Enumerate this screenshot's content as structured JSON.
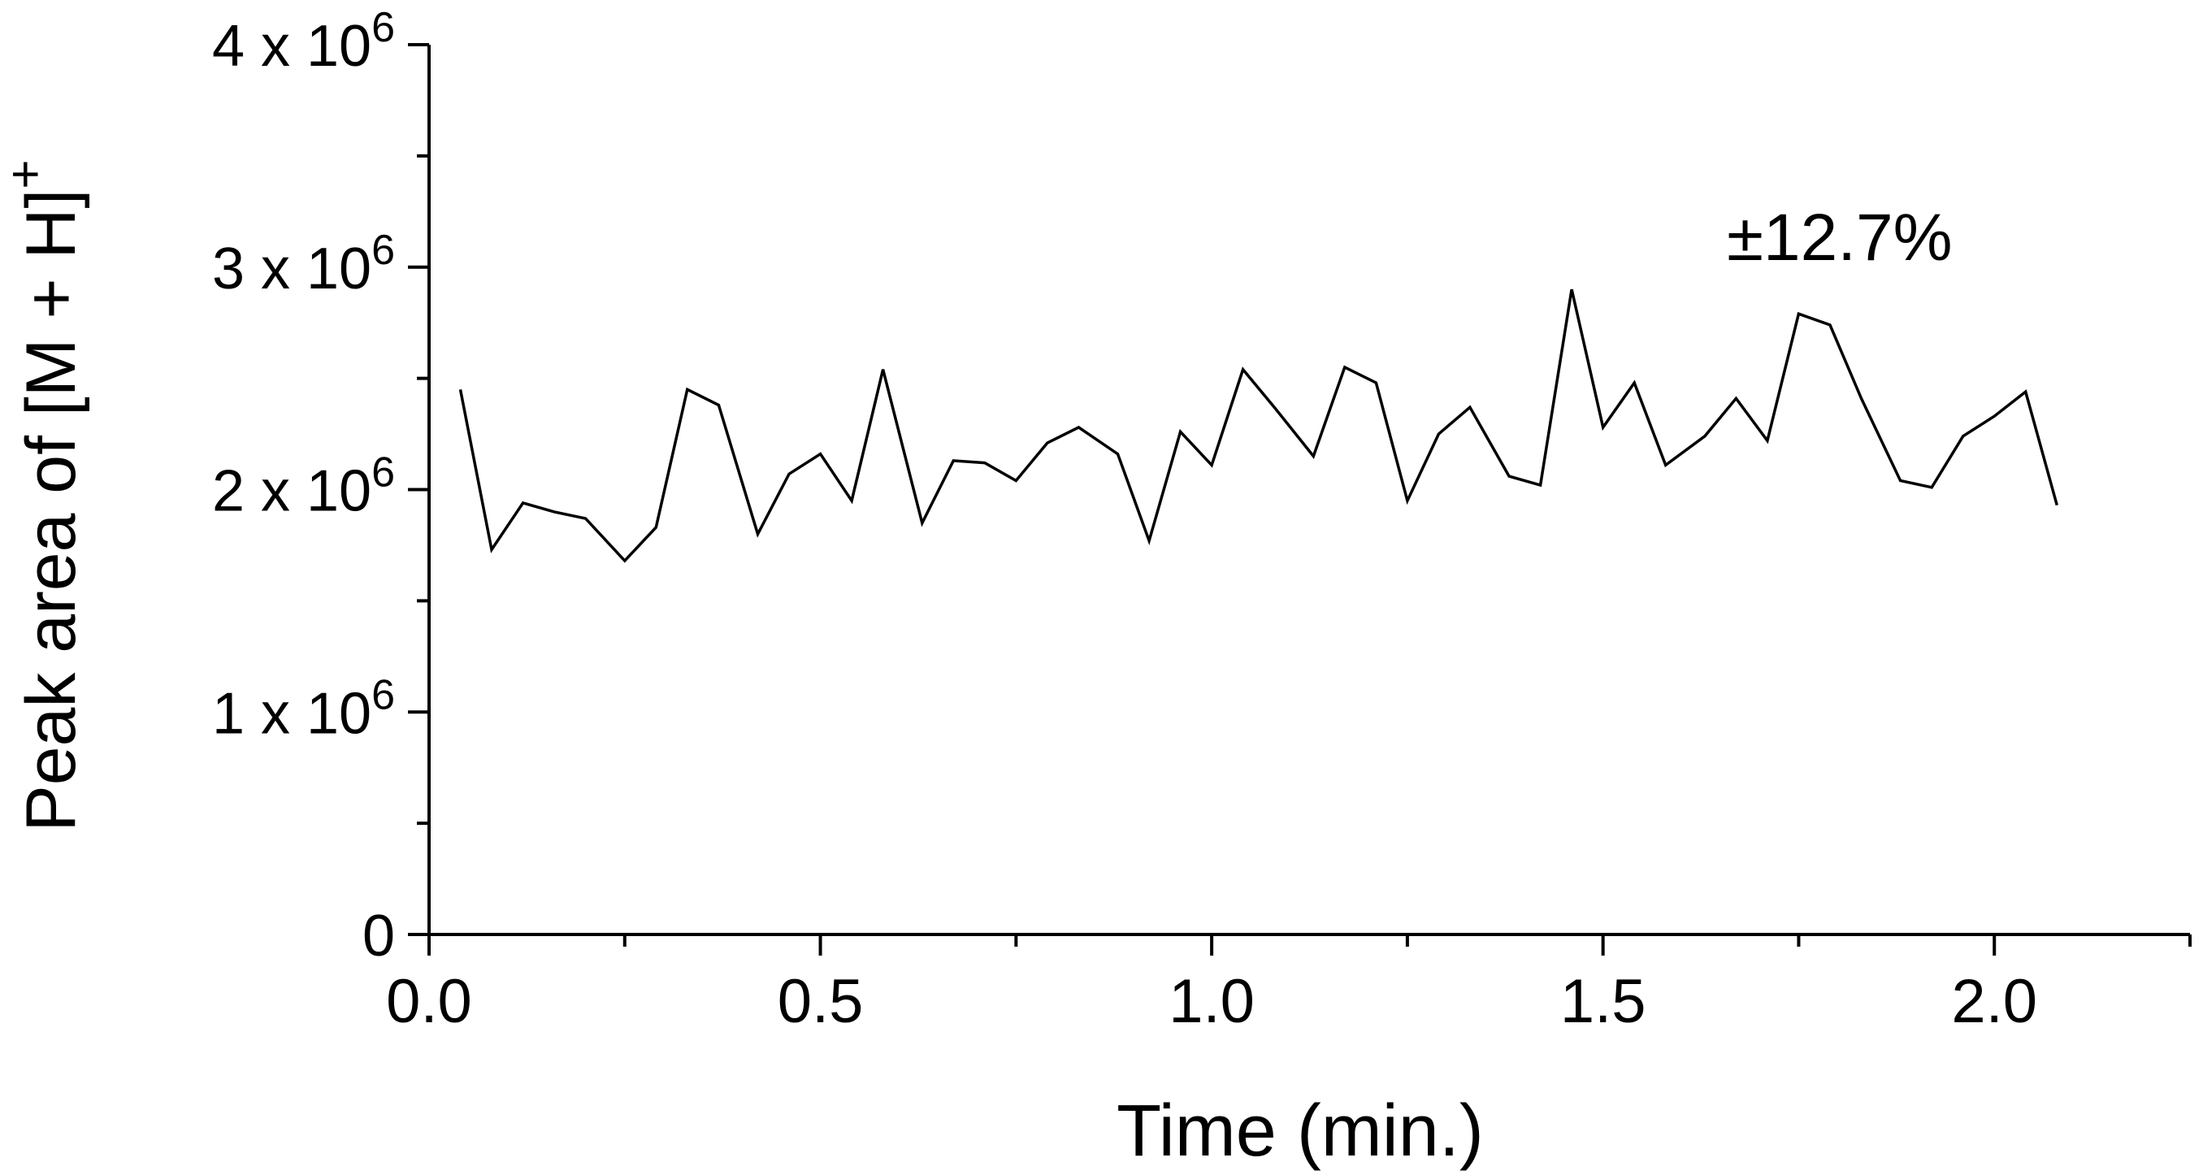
{
  "chart_data": {
    "type": "line",
    "title": "",
    "xlabel": "Time (min.)",
    "ylabel": "Peak area of [M + H]",
    "ylabel_superscript": "+",
    "xlim": [
      0,
      2.25
    ],
    "ylim": [
      0,
      4000000
    ],
    "x_ticks": [
      "0.0",
      "0.5",
      "1.0",
      "1.5",
      "2.0"
    ],
    "x_tick_values": [
      0,
      0.5,
      1.0,
      1.5,
      2.0
    ],
    "y_ticks": [
      {
        "value": 0,
        "base": "0",
        "exp": ""
      },
      {
        "value": 1000000,
        "base": "1 x 10",
        "exp": "6"
      },
      {
        "value": 2000000,
        "base": "2 x 10",
        "exp": "6"
      },
      {
        "value": 3000000,
        "base": "3 x 10",
        "exp": "6"
      },
      {
        "value": 4000000,
        "base": "4 x 10",
        "exp": "6"
      }
    ],
    "annotation": "±12.7%",
    "annotation_position": "top-right",
    "grid": false,
    "legend": false,
    "series": [
      {
        "color": "#000000",
        "x": [
          0.04,
          0.08,
          0.12,
          0.16,
          0.2,
          0.25,
          0.29,
          0.33,
          0.37,
          0.42,
          0.46,
          0.5,
          0.54,
          0.58,
          0.63,
          0.67,
          0.71,
          0.75,
          0.79,
          0.83,
          0.88,
          0.92,
          0.96,
          1.0,
          1.04,
          1.08,
          1.13,
          1.17,
          1.21,
          1.25,
          1.29,
          1.33,
          1.38,
          1.42,
          1.46,
          1.5,
          1.54,
          1.58,
          1.63,
          1.67,
          1.71,
          1.75,
          1.79,
          1.83,
          1.88,
          1.92,
          1.96,
          2.0,
          2.04,
          2.08
        ],
        "y": [
          2450000,
          1730000,
          1940000,
          1900000,
          1870000,
          1680000,
          1830000,
          2450000,
          2380000,
          1800000,
          2070000,
          2160000,
          1950000,
          2540000,
          1850000,
          2130000,
          2120000,
          2040000,
          2210000,
          2280000,
          2160000,
          1770000,
          2260000,
          2110000,
          2540000,
          2370000,
          2150000,
          2550000,
          2480000,
          1950000,
          2250000,
          2370000,
          2060000,
          2020000,
          2900000,
          2280000,
          2480000,
          2110000,
          2240000,
          2410000,
          2220000,
          2790000,
          2740000,
          2410000,
          2040000,
          2010000,
          2240000,
          2330000,
          2440000,
          1930000
        ]
      }
    ]
  }
}
